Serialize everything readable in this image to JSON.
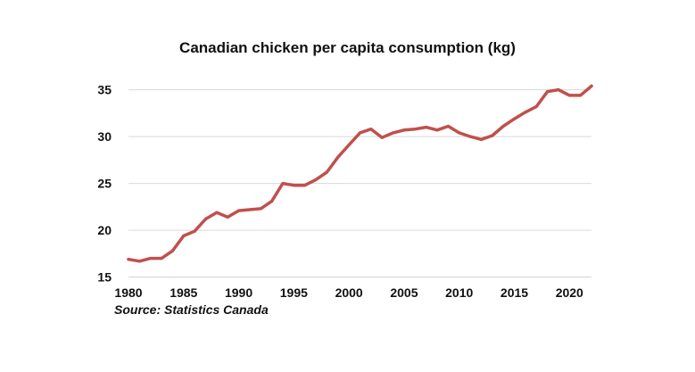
{
  "chart_data": {
    "type": "line",
    "title": "Canadian chicken per capita consumption (kg)",
    "xlabel": "",
    "ylabel": "",
    "source": "Source: Statistics Canada",
    "xlim": [
      1980,
      2022
    ],
    "ylim": [
      15,
      37
    ],
    "x_ticks": [
      1980,
      1985,
      1990,
      1995,
      2000,
      2005,
      2010,
      2015,
      2020
    ],
    "y_ticks": [
      15,
      20,
      25,
      30,
      35
    ],
    "grid": "horizontal",
    "legend": "none",
    "line_color": "#c0504d",
    "x": [
      1980,
      1981,
      1982,
      1983,
      1984,
      1985,
      1986,
      1987,
      1988,
      1989,
      1990,
      1991,
      1992,
      1993,
      1994,
      1995,
      1996,
      1997,
      1998,
      1999,
      2000,
      2001,
      2002,
      2003,
      2004,
      2005,
      2006,
      2007,
      2008,
      2009,
      2010,
      2011,
      2012,
      2013,
      2014,
      2015,
      2016,
      2017,
      2018,
      2019,
      2020,
      2021,
      2022
    ],
    "series": [
      {
        "values": [
          16.9,
          16.7,
          17.0,
          17.0,
          17.8,
          19.4,
          19.9,
          21.2,
          21.9,
          21.4,
          22.1,
          22.2,
          22.3,
          23.1,
          25.0,
          24.8,
          24.8,
          25.4,
          26.2,
          27.8,
          29.1,
          30.4,
          30.8,
          29.9,
          30.4,
          30.7,
          30.8,
          31.0,
          30.7,
          31.1,
          30.4,
          30.0,
          29.7,
          30.1,
          31.1,
          31.9,
          32.6,
          33.2,
          34.8,
          35.0,
          34.4,
          34.4,
          35.4
        ]
      }
    ]
  }
}
